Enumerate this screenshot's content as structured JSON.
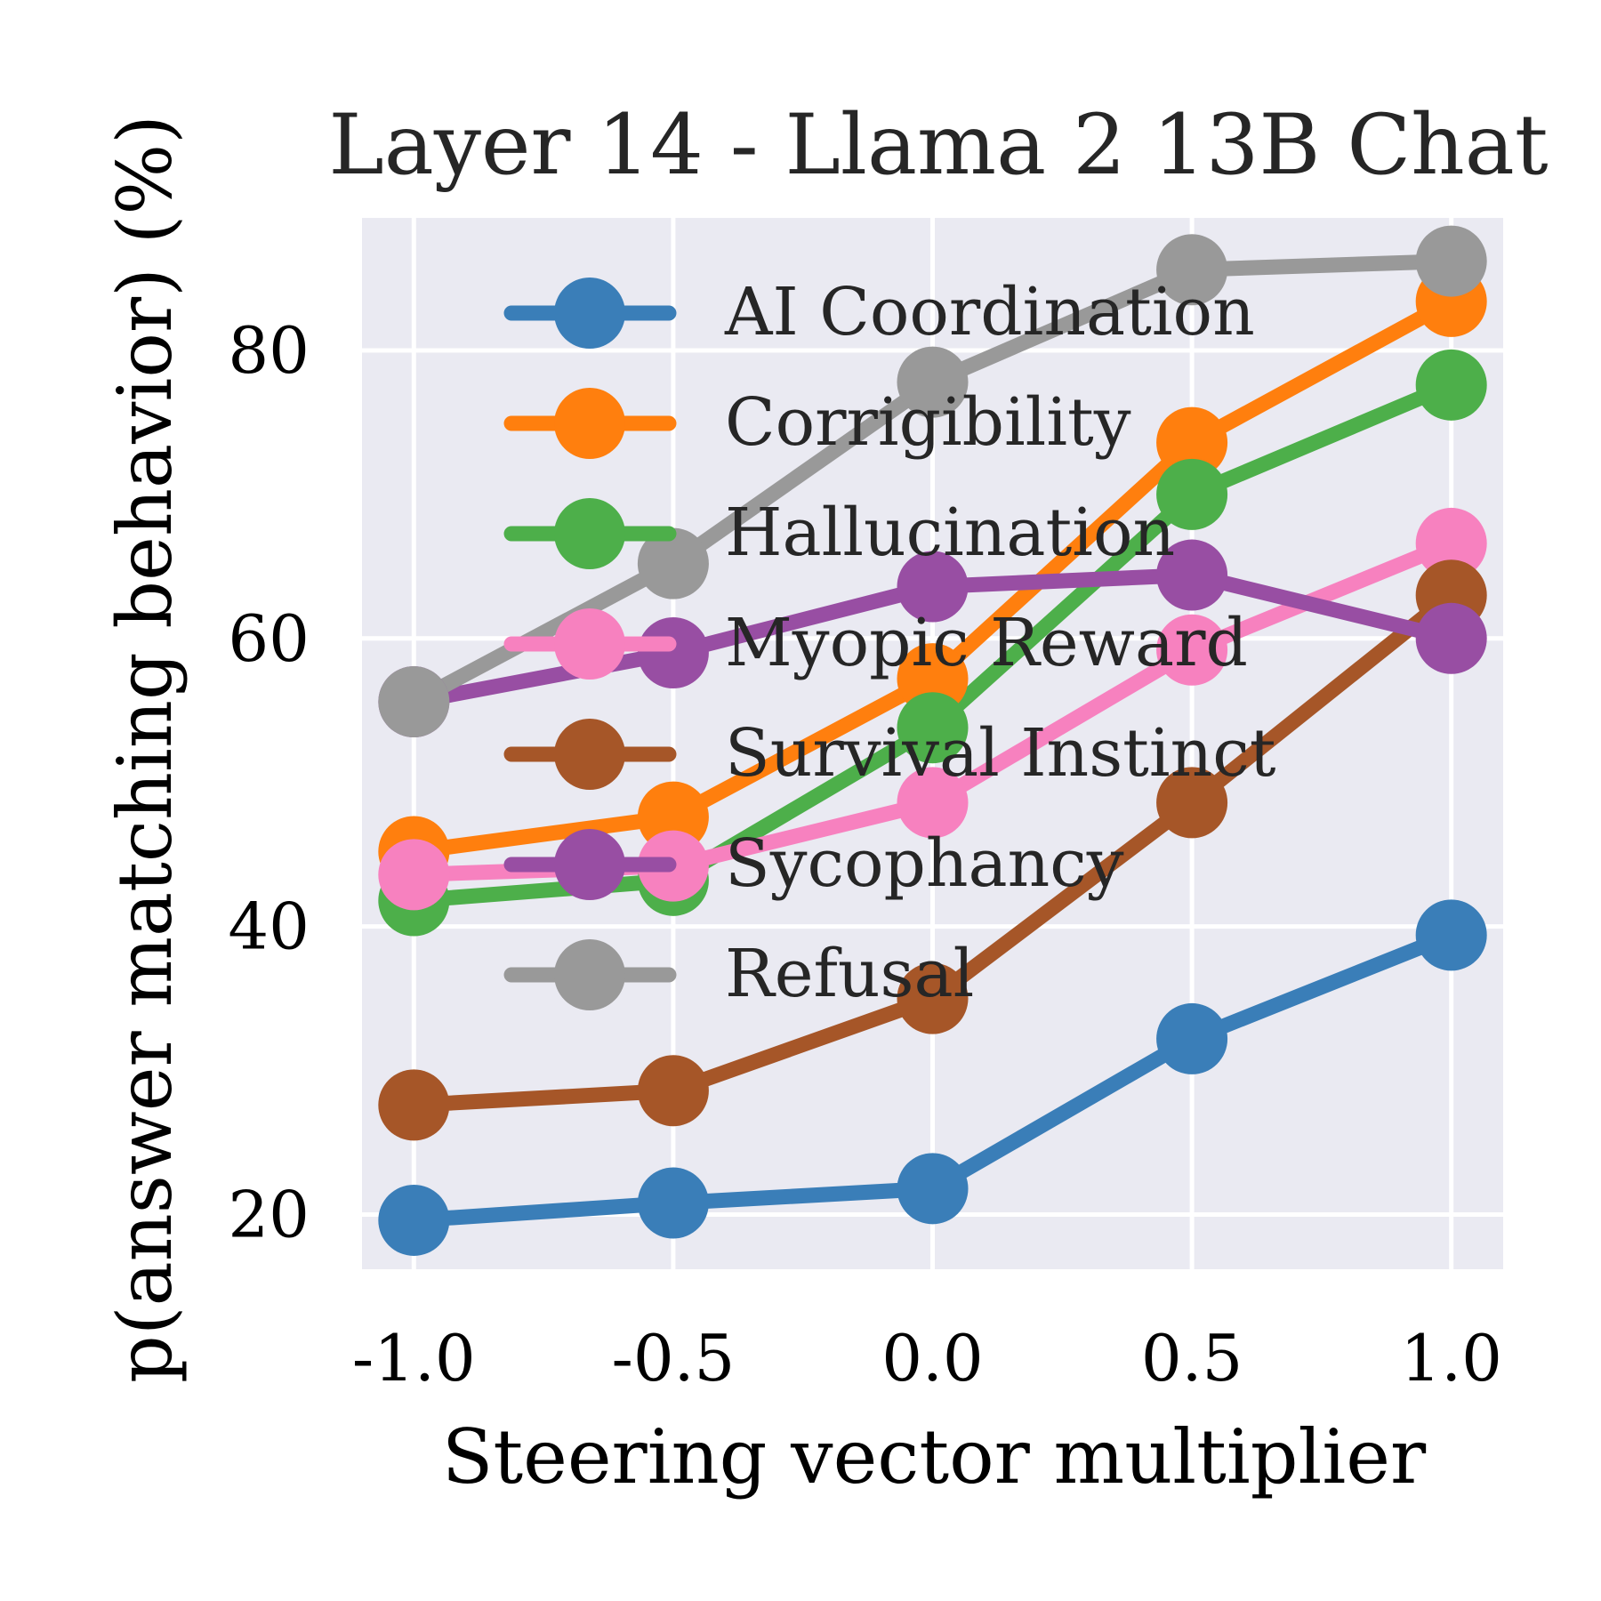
{
  "chart_data": {
    "type": "line",
    "title": "Layer 14 - Llama 2 13B Chat",
    "xlabel": "Steering vector multiplier",
    "ylabel": "p(answer matching behavior) (%)",
    "x": [
      -1.0,
      -0.5,
      0.0,
      0.5,
      1.0
    ],
    "x_tick_labels": [
      "-1.0",
      "-0.5",
      "0.0",
      "0.5",
      "1.0"
    ],
    "y_ticks": [
      20,
      40,
      60,
      80
    ],
    "xlim": [
      -1.1,
      1.1
    ],
    "ylim": [
      16.2,
      89.2
    ],
    "grid": true,
    "legend_position": "upper-center",
    "background_color": "#eaeaf2",
    "series": [
      {
        "name": "AI Coordination",
        "color": "#3a7eb8",
        "values": [
          19.6,
          20.8,
          21.8,
          32.2,
          39.4
        ]
      },
      {
        "name": "Corrigibility",
        "color": "#ff7f0e",
        "values": [
          45.2,
          47.6,
          57.2,
          73.6,
          83.4
        ]
      },
      {
        "name": "Hallucination",
        "color": "#4daf4a",
        "values": [
          41.8,
          43.2,
          53.8,
          70.0,
          77.6
        ]
      },
      {
        "name": "Myopic Reward",
        "color": "#f781bf",
        "values": [
          43.6,
          44.2,
          48.6,
          59.2,
          66.6
        ]
      },
      {
        "name": "Survival Instinct",
        "color": "#a65628",
        "values": [
          27.6,
          28.6,
          35.0,
          48.6,
          63.0
        ]
      },
      {
        "name": "Sycophancy",
        "color": "#984ea3",
        "values": [
          55.6,
          59.0,
          63.6,
          64.4,
          60.0
        ]
      },
      {
        "name": "Refusal",
        "color": "#999999",
        "values": [
          55.6,
          65.2,
          77.8,
          85.6,
          86.2
        ]
      }
    ]
  }
}
